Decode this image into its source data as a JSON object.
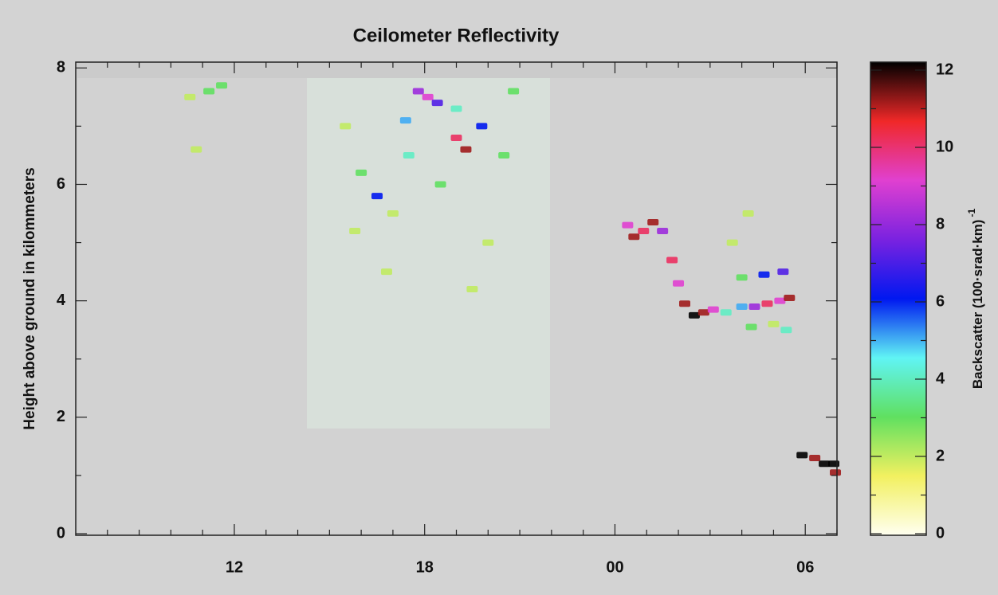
{
  "chart_data": {
    "type": "heatmap",
    "title": "Ceilometer Reflectivity",
    "ylabel": "Height above ground in kilommeters",
    "xlim": [
      7,
      31
    ],
    "xticks": [
      12,
      18,
      {
        "value": 24,
        "label": "00"
      },
      {
        "value": 30,
        "label": "06"
      }
    ],
    "xminorticks": [
      8,
      9,
      10,
      11,
      13,
      14,
      15,
      16,
      17,
      19,
      20,
      21,
      22,
      23,
      25,
      26,
      27,
      28,
      29,
      31
    ],
    "ylim": [
      0,
      8.1
    ],
    "yticks": [
      0,
      2,
      4,
      6,
      8
    ],
    "yminorticks": [
      1,
      3,
      5,
      7
    ],
    "colorbar": {
      "label": "Backscatter (100·srad·km)",
      "label_exponent": "-1",
      "zlim": [
        0,
        12
      ],
      "zticks": [
        0,
        2,
        4,
        6,
        8,
        10,
        12
      ],
      "zminorticks": [
        1,
        3,
        5,
        7,
        9,
        11
      ],
      "colormap": [
        "#fffff0",
        "#f2f060",
        "#60e060",
        "#60f4f4",
        "#0018f0",
        "#7a22e0",
        "#e040d0",
        "#f02828",
        "#000000"
      ]
    },
    "points": {
      "x": [
        24.4,
        24.6,
        24.9,
        25.2,
        25.5,
        25.8,
        26.0,
        26.2,
        26.5,
        26.8,
        27.1,
        27.5,
        28.0,
        28.4,
        28.8,
        29.2,
        29.5,
        28.3,
        29.0,
        28.7,
        29.3,
        28.0,
        27.7,
        28.2,
        29.4,
        29.9,
        30.3,
        30.6,
        30.9,
        30.95,
        17.8,
        18.1,
        18.4,
        19.0,
        19.3,
        19.8,
        17.4,
        16.5,
        10.6,
        11.2,
        11.6,
        10.8,
        15.5,
        16.0,
        17.0,
        18.5,
        20.0,
        19.5,
        16.8,
        20.5,
        15.8,
        17.5,
        19.0,
        20.8
      ],
      "y": [
        5.3,
        5.1,
        5.2,
        5.35,
        5.2,
        4.7,
        4.3,
        3.95,
        3.75,
        3.8,
        3.85,
        3.8,
        3.9,
        3.9,
        3.95,
        4.0,
        4.05,
        3.55,
        3.6,
        4.45,
        4.5,
        4.4,
        5.0,
        5.5,
        3.5,
        1.35,
        1.3,
        1.2,
        1.2,
        1.05,
        7.6,
        7.5,
        7.4,
        6.8,
        6.6,
        7.0,
        7.1,
        5.8,
        7.5,
        7.6,
        7.7,
        6.6,
        7.0,
        6.2,
        5.5,
        6.0,
        5.0,
        4.2,
        4.5,
        6.5,
        5.2,
        6.5,
        7.3,
        7.6
      ],
      "values": [
        9,
        11,
        10,
        11,
        8,
        10,
        9,
        11,
        12,
        11,
        9,
        4,
        5,
        8,
        10,
        9,
        11,
        3,
        2,
        6,
        7,
        3,
        2,
        2,
        4,
        12,
        11,
        12,
        12,
        11,
        8,
        9,
        7,
        10,
        11,
        6,
        5,
        6,
        2,
        3,
        3,
        2,
        2,
        3,
        2,
        3,
        2,
        2,
        2,
        3,
        2,
        4,
        4,
        3
      ]
    }
  }
}
